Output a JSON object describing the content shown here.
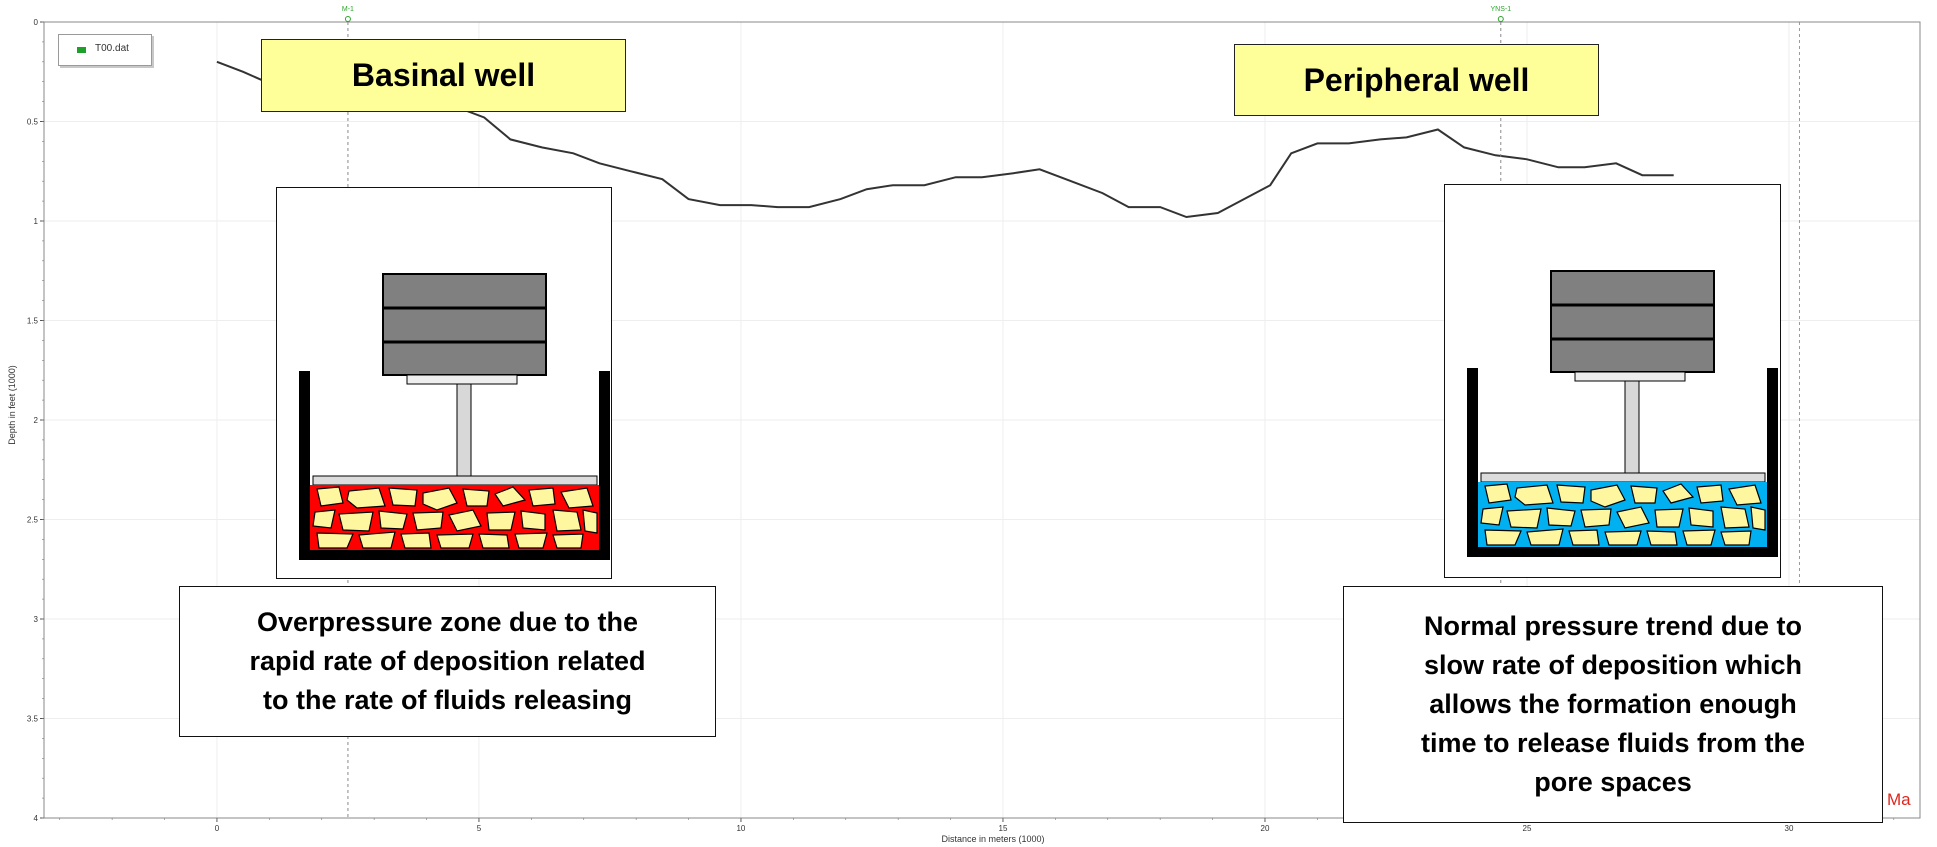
{
  "chart_data": {
    "type": "line",
    "xlabel": "Distance in meters (1000)",
    "ylabel": "Depth in feet (1000)",
    "xlim": [
      -3.3,
      32.5
    ],
    "ylim": [
      0,
      4
    ],
    "y_inverted": true,
    "x_ticks": [
      0,
      5,
      10,
      15,
      20,
      25,
      30
    ],
    "y_ticks": [
      0,
      0.5,
      1,
      1.5,
      2,
      2.5,
      3,
      3.5,
      4
    ],
    "y_tick_labels": [
      "0",
      "0.5",
      "1",
      "1.5",
      "2",
      "2.5",
      "3",
      "3.5",
      "4"
    ],
    "grid": true,
    "legend": {
      "position": "top-left",
      "entries": [
        "T00.dat"
      ]
    },
    "series": [
      {
        "name": "T00.dat",
        "color": "#333333",
        "x": [
          0,
          0.5,
          1.1,
          1.6,
          2.2,
          2.7,
          3.4,
          4.0,
          4.6,
          5.1,
          5.6,
          6.2,
          6.8,
          7.3,
          7.9,
          8.5,
          9.0,
          9.6,
          10.2,
          10.7,
          11.3,
          11.9,
          12.4,
          12.9,
          13.5,
          14.1,
          14.6,
          15.2,
          15.7,
          16.3,
          16.9,
          17.4,
          18.0,
          18.5,
          19.1,
          19.6,
          20.1,
          20.5,
          21.0,
          21.6,
          22.2,
          22.7,
          23.3,
          23.8,
          24.4,
          25.0,
          25.6,
          26.1,
          26.7,
          27.2,
          27.8
        ],
        "y": [
          0.2,
          0.25,
          0.32,
          0.37,
          0.41,
          0.41,
          0.41,
          0.42,
          0.43,
          0.48,
          0.59,
          0.63,
          0.66,
          0.71,
          0.75,
          0.79,
          0.89,
          0.92,
          0.92,
          0.93,
          0.93,
          0.89,
          0.84,
          0.82,
          0.82,
          0.78,
          0.78,
          0.76,
          0.74,
          0.8,
          0.86,
          0.93,
          0.93,
          0.98,
          0.96,
          0.89,
          0.82,
          0.66,
          0.61,
          0.61,
          0.59,
          0.58,
          0.54,
          0.63,
          0.67,
          0.69,
          0.73,
          0.73,
          0.71,
          0.77,
          0.77
        ]
      }
    ],
    "wells": [
      {
        "name": "M-1",
        "x": 2.5
      },
      {
        "name": "YNS-1",
        "x": 24.5
      }
    ]
  },
  "labels": {
    "basinal": "Basinal well",
    "peripheral": "Peripheral well",
    "overpressure_lines": [
      "Overpressure zone due to the",
      "rapid rate of deposition related",
      "to the rate of fluids releasing"
    ],
    "normal_lines": [
      "Normal pressure trend due to",
      "slow rate of deposition which",
      "allows the formation enough",
      "time to release fluids from the",
      "pore spaces"
    ],
    "corner": "Ma"
  },
  "colors": {
    "overpressure_fluid": "#ff0000",
    "normal_fluid": "#00b0f0",
    "grain": "#fff6a0",
    "weight": "#808080",
    "well_label_bg": "#ffff99",
    "well_marker": "#2aa52a"
  }
}
